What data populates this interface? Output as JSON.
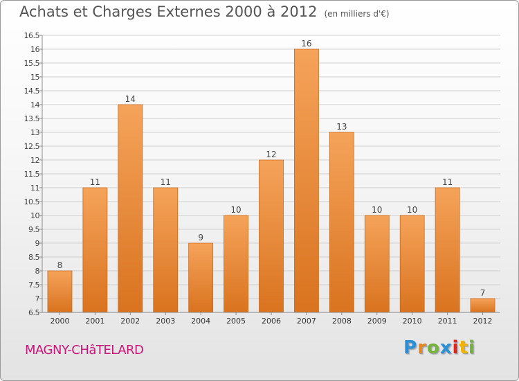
{
  "title": "Achats et Charges Externes 2000 à 2012",
  "subtitle": "(en milliers d'€)",
  "commune": "MAGNY-CHâTELARD",
  "logo": {
    "letters": [
      "P",
      "r",
      "o",
      "x",
      "i",
      "t",
      "i"
    ],
    "colors": [
      "#2a8fd6",
      "#e8871c",
      "#74b43a",
      "#2a8fd6",
      "#e2231a",
      "#f2b400",
      "#74b43a"
    ]
  },
  "colors": {
    "bar_top": "#f5a35a",
    "bar_bottom": "#d9731f",
    "bar_edge": "#c86a1e",
    "grid": "#cfcfcf"
  },
  "chart_data": {
    "type": "bar",
    "title": "Achats et Charges Externes 2000 à 2012",
    "xlabel": "",
    "ylabel": "",
    "categories": [
      "2000",
      "2001",
      "2002",
      "2003",
      "2004",
      "2005",
      "2006",
      "2007",
      "2008",
      "2009",
      "2010",
      "2011",
      "2012"
    ],
    "values": [
      8,
      11,
      14,
      11,
      9,
      10,
      12,
      16,
      13,
      10,
      10,
      11,
      7
    ],
    "ylim": [
      6.5,
      16.5
    ],
    "yticks": [
      6.5,
      7,
      7.5,
      8,
      8.5,
      9,
      9.5,
      10,
      10.5,
      11,
      11.5,
      12,
      12.5,
      13,
      13.5,
      14,
      14.5,
      15,
      15.5,
      16,
      16.5
    ],
    "grid": true,
    "legend": "none"
  }
}
